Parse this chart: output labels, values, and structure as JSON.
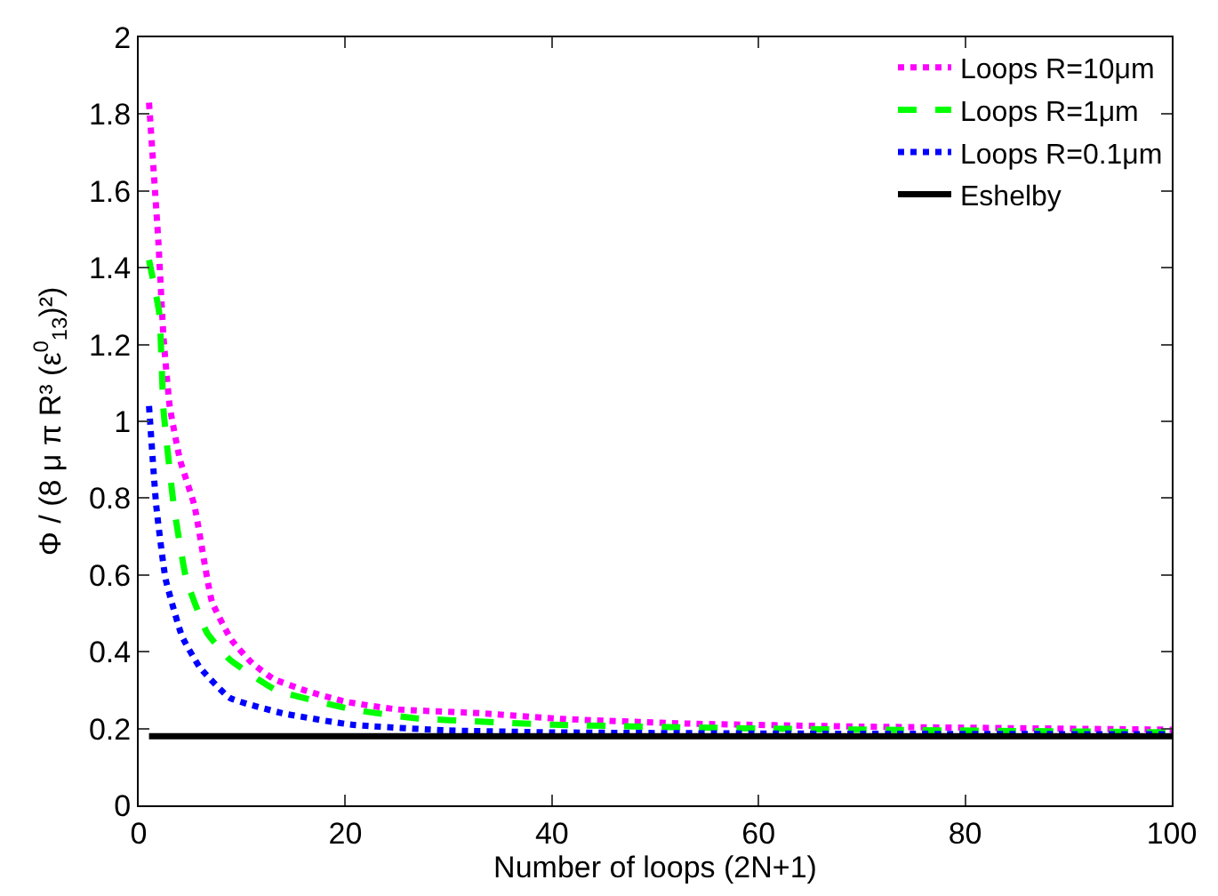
{
  "chart_data": {
    "type": "line",
    "xlabel": "Number of loops (2N+1)",
    "ylabel": "Φ / (8 μ π R³ (ε$^{0}$$_{13}$)²)",
    "xlim": [
      0,
      100
    ],
    "xticks": [
      0,
      20,
      40,
      60,
      80,
      100
    ],
    "ylim": [
      0,
      2
    ],
    "yticks": [
      0,
      0.2,
      0.4,
      0.6,
      0.8,
      1,
      1.2,
      1.4,
      1.6,
      1.8,
      2
    ],
    "grid": false,
    "legend": "top right",
    "marker": "none",
    "series": [
      {
        "name": "Loops R=10μm",
        "color": "#ff00ff",
        "line_style": "dotted",
        "x": [
          1,
          1.9,
          2.4,
          3,
          4,
          5.4,
          7.1,
          9,
          11,
          13,
          16,
          20,
          25,
          33,
          41,
          53,
          70,
          100
        ],
        "values": [
          1.83,
          1.47,
          1.22,
          1.04,
          0.9,
          0.78,
          0.53,
          0.43,
          0.37,
          0.33,
          0.3,
          0.27,
          0.25,
          0.24,
          0.225,
          0.213,
          0.205,
          0.197
        ]
      },
      {
        "name": "Loops R=1μm",
        "color": "#00ff00",
        "line_style": "dashed",
        "x": [
          1,
          2,
          2.4,
          3.4,
          4.6,
          6.6,
          8.8,
          13.3,
          20.6,
          26.8,
          40,
          60,
          100
        ],
        "values": [
          1.42,
          1.28,
          1.03,
          0.78,
          0.59,
          0.45,
          0.38,
          0.3,
          0.25,
          0.227,
          0.21,
          0.2,
          0.19
        ]
      },
      {
        "name": "Loops R=0.1μm",
        "color": "#0000ff",
        "line_style": "dotted",
        "x": [
          1,
          1.7,
          2.6,
          4.2,
          5.9,
          8.8,
          13.9,
          20.6,
          30,
          40,
          60,
          100
        ],
        "values": [
          1.04,
          0.78,
          0.59,
          0.44,
          0.36,
          0.28,
          0.24,
          0.21,
          0.195,
          0.19,
          0.187,
          0.185
        ]
      },
      {
        "name": "Eshelby",
        "color": "#000000",
        "line_style": "solid",
        "x": [
          1,
          100
        ],
        "values": [
          0.18,
          0.18
        ]
      }
    ]
  }
}
